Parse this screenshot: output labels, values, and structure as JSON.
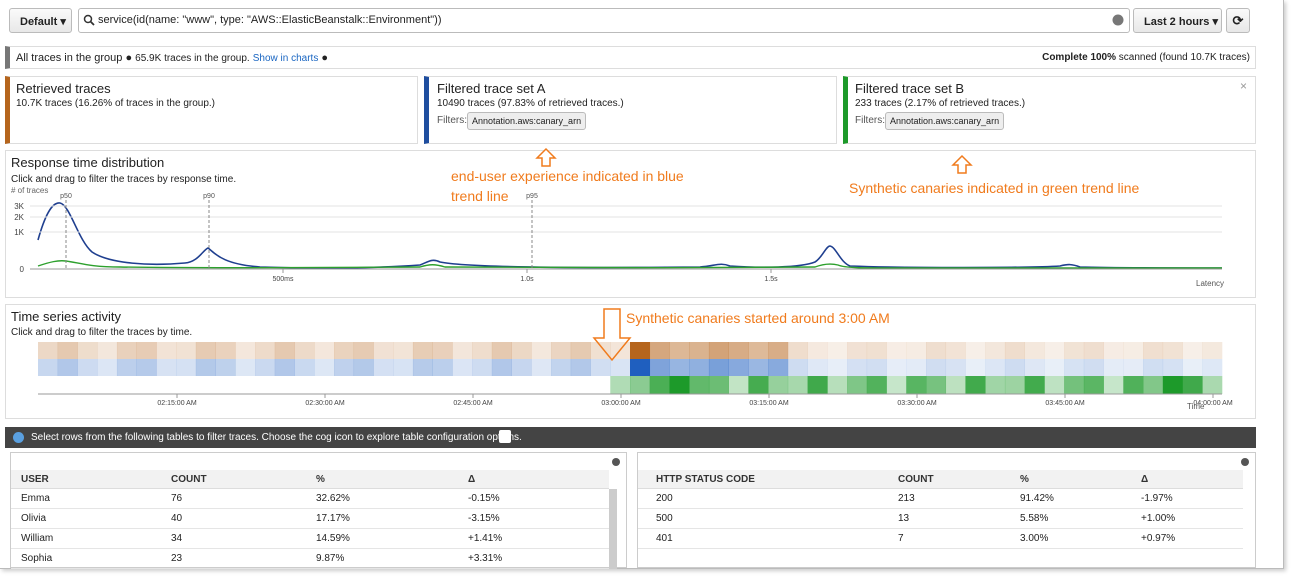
{
  "toolbar": {
    "group_button": "Default",
    "query": "service(id(name: \"www\", type: \"AWS::ElasticBeanstalk::Environment\"))",
    "time_range": "Last 2 hours"
  },
  "summary": {
    "title": "All traces in the group",
    "count": "65.9K traces in the group.",
    "link": "Show in charts",
    "status_label": "Complete",
    "status_percent": "100%",
    "status_rest": "scanned (found 10.7K traces)"
  },
  "cards": [
    {
      "title": "Retrieved traces",
      "text": "10.7K traces (16.26% of traces in the group.)"
    },
    {
      "title": "Filtered trace set A",
      "text": "10490 traces (97.83% of retrieved traces.)",
      "filters_label": "Filters:",
      "filter": "Annotation.aws:canary_arn"
    },
    {
      "title": "Filtered trace set B",
      "text": "233 traces (2.17% of retrieved traces.)",
      "filters_label": "Filters:",
      "filter": "Annotation.aws:canary_arn"
    }
  ],
  "response_time": {
    "title": "Response time distribution",
    "subtitle": "Click and drag to filter the traces by response time.",
    "y_label": "# of traces",
    "yticks": [
      "3K",
      "2K",
      "1K",
      "0"
    ],
    "markers": [
      "p50",
      "p90",
      "p95"
    ],
    "xticks": [
      "500ms",
      "1.0s",
      "1.5s"
    ],
    "x_label": "Latency"
  },
  "time_series": {
    "title": "Time series activity",
    "subtitle": "Click and drag to filter the traces by time.",
    "xticks": [
      "02:15:00 AM",
      "02:30:00 AM",
      "02:45:00 AM",
      "03:00:00 AM",
      "03:15:00 AM",
      "03:30:00 AM",
      "03:45:00 AM",
      "04:00:00 AM"
    ],
    "x_label": "Time"
  },
  "annotations": [
    "end-user experience indicated in blue trend line",
    "Synthetic canaries indicated in green trend line",
    "Synthetic canaries started around 3:00 AM"
  ],
  "info_bar": "Select rows from the following tables to filter traces. Choose the cog icon to explore table configuration options.",
  "tables": [
    {
      "headers": [
        "USER",
        "COUNT",
        "%",
        "Δ"
      ],
      "rows": [
        [
          "Emma",
          "76",
          "32.62%",
          "-0.15%"
        ],
        [
          "Olivia",
          "40",
          "17.17%",
          "-3.15%"
        ],
        [
          "William",
          "34",
          "14.59%",
          "+1.41%"
        ],
        [
          "Sophia",
          "23",
          "9.87%",
          "+3.31%"
        ]
      ]
    },
    {
      "headers": [
        "HTTP STATUS CODE",
        "COUNT",
        "%",
        "Δ"
      ],
      "rows": [
        [
          "200",
          "213",
          "91.42%",
          "-1.97%"
        ],
        [
          "500",
          "13",
          "5.58%",
          "+1.00%"
        ],
        [
          "401",
          "7",
          "3.00%",
          "+0.97%"
        ]
      ]
    }
  ]
}
